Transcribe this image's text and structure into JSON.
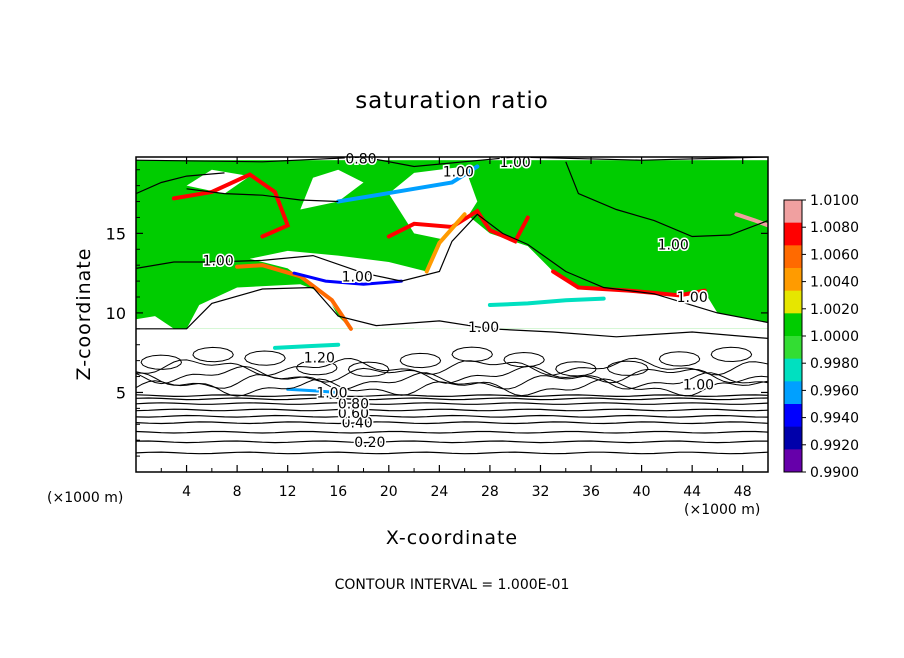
{
  "chart_data": {
    "type": "heatmap",
    "title": "saturation ratio",
    "xlabel": "X-coordinate",
    "ylabel": "Z-coordinate",
    "x_unit_label": "(×1000 m)",
    "x_unit_label_right": "(×1000 m)",
    "footer": "CONTOUR INTERVAL = 1.000E-01",
    "xlim": [
      0,
      50
    ],
    "ylim": [
      0,
      19.8
    ],
    "x_ticks": [
      4,
      8,
      12,
      16,
      20,
      24,
      28,
      32,
      36,
      40,
      44,
      48
    ],
    "y_ticks": [
      5,
      10,
      15
    ],
    "colorbar": {
      "levels": [
        1.01,
        1.008,
        1.006,
        1.004,
        1.002,
        1.0,
        0.998,
        0.996,
        0.994,
        0.992,
        0.99
      ],
      "tick_labels": [
        "1.0100",
        "1.0080",
        "1.0060",
        "1.0040",
        "1.0020",
        "1.0000",
        "0.9980",
        "0.9960",
        "0.9940",
        "0.9920",
        "0.9900"
      ],
      "colors": [
        "#f0a0a0",
        "#ff0000",
        "#ff6a00",
        "#ff9b00",
        "#e6e600",
        "#00cc00",
        "#33dd33",
        "#00e0c0",
        "#00a0ff",
        "#0000ff",
        "#0000aa",
        "#6600aa"
      ]
    },
    "contour_labels": [
      {
        "text": "0.20",
        "x": 18.5,
        "z": 1.9
      },
      {
        "text": "0.40",
        "x": 17.5,
        "z": 3.1
      },
      {
        "text": "0.60",
        "x": 17.2,
        "z": 3.7
      },
      {
        "text": "0.80",
        "x": 17.2,
        "z": 4.3
      },
      {
        "text": "1.00",
        "x": 15.5,
        "z": 5.0
      },
      {
        "text": "1.20",
        "x": 14.5,
        "z": 7.2
      },
      {
        "text": "1.00",
        "x": 6.5,
        "z": 13.3
      },
      {
        "text": "1.00",
        "x": 17.5,
        "z": 12.3
      },
      {
        "text": "1.00",
        "x": 27.5,
        "z": 9.1
      },
      {
        "text": "1.00",
        "x": 44.5,
        "z": 5.5
      },
      {
        "text": "1.00",
        "x": 42.5,
        "z": 14.3
      },
      {
        "text": "1.00",
        "x": 44.0,
        "z": 11.0
      },
      {
        "text": "1.00",
        "x": 25.5,
        "z": 18.9
      },
      {
        "text": "1.00",
        "x": 30.0,
        "z": 19.5
      },
      {
        "text": "0.80",
        "x": 17.8,
        "z": 19.7
      }
    ],
    "lower_contour_levels": [
      0.1,
      0.2,
      0.3,
      0.4,
      0.5,
      0.6,
      0.7,
      0.8,
      0.9
    ],
    "lower_contour_z": [
      1.2,
      1.9,
      2.5,
      3.1,
      3.5,
      3.9,
      4.3,
      4.6,
      4.8
    ]
  }
}
